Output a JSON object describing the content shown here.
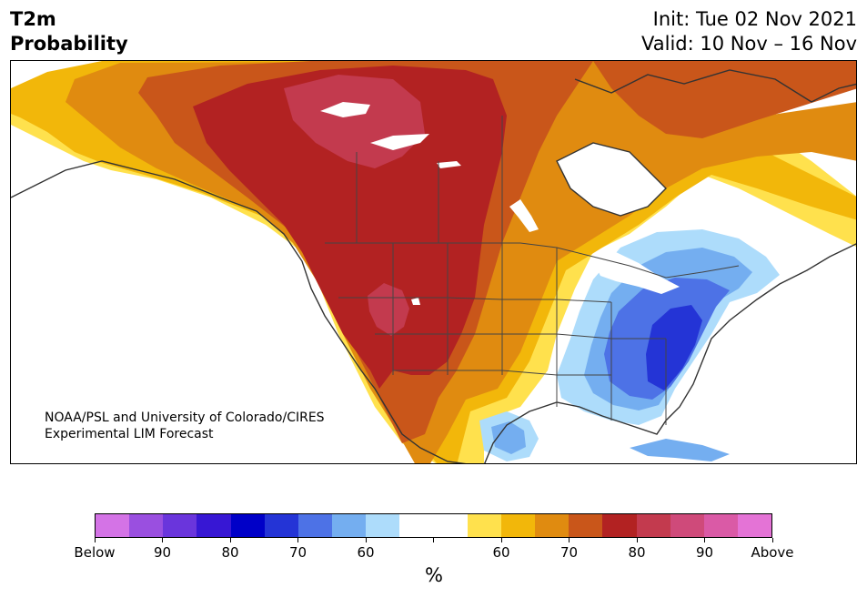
{
  "header": {
    "title_line1": "T2m",
    "title_line2": "Probability",
    "init": "Init: Tue 02 Nov 2021",
    "valid": "Valid: 10 Nov – 16 Nov"
  },
  "map": {
    "credit_line1": "NOAA/PSL and University of Colorado/CIRES",
    "credit_line2": "Experimental LIM Forecast"
  },
  "colorbar": {
    "colors": [
      "#d473e6",
      "#9a4fe0",
      "#6a35dc",
      "#3717d4",
      "#0000c8",
      "#2434d6",
      "#4d72e6",
      "#74aef0",
      "#addcfb",
      "#ffffff",
      "#ffffff",
      "#ffe14d",
      "#f2b70a",
      "#e08b10",
      "#c9561a",
      "#b22222",
      "#c33a4e",
      "#cf4a7a",
      "#da5aa6",
      "#e473d6"
    ],
    "tick_labels": [
      "Below",
      "90",
      "80",
      "70",
      "60",
      "",
      "60",
      "70",
      "80",
      "90",
      "Above"
    ],
    "unit": "%"
  }
}
